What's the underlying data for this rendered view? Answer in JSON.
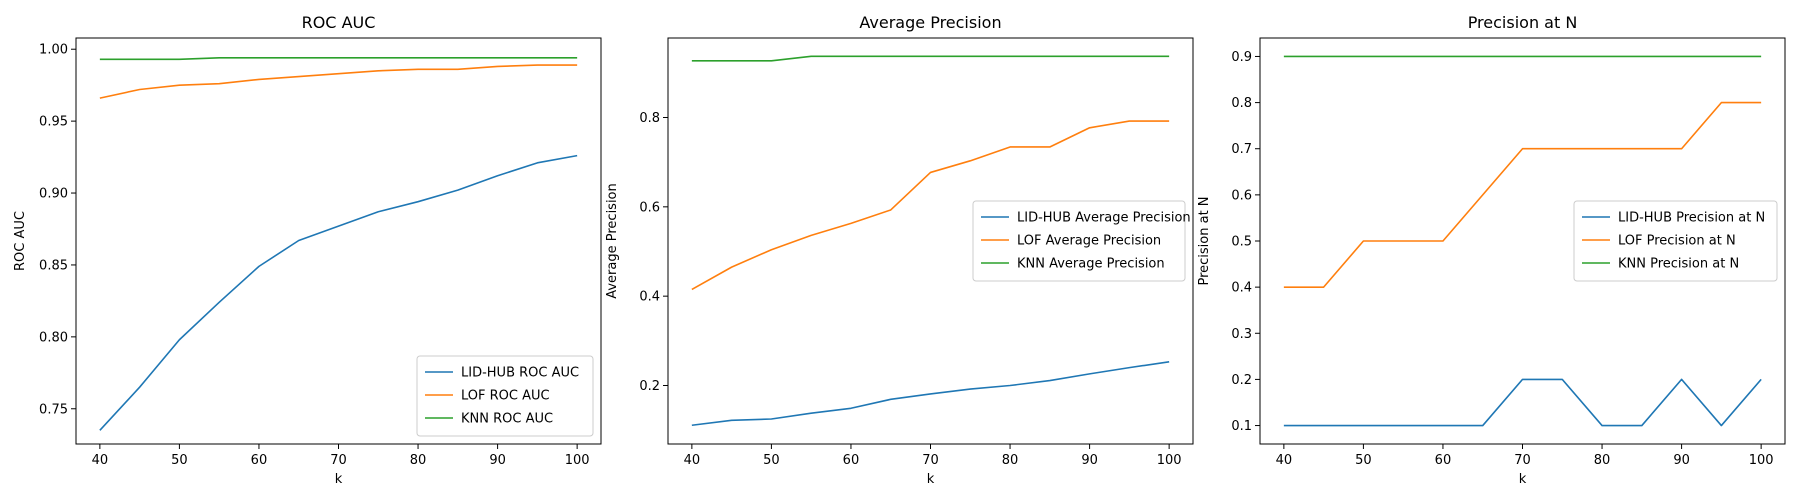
{
  "colors": {
    "blue": "#1f77b4",
    "orange": "#ff7f0e",
    "green": "#2ca02c"
  },
  "chart_data": [
    {
      "type": "line",
      "title": "ROC AUC",
      "xlabel": "k",
      "ylabel": "ROC AUC",
      "x": [
        40,
        45,
        50,
        55,
        60,
        65,
        70,
        75,
        80,
        85,
        90,
        95,
        100
      ],
      "xlim": [
        37,
        103
      ],
      "ylim": [
        0.7255,
        1.0078
      ],
      "xticks": [
        40,
        50,
        60,
        70,
        80,
        90,
        100
      ],
      "yticks": [
        0.75,
        0.8,
        0.85,
        0.9,
        0.95,
        1.0
      ],
      "ytick_labels": [
        "0.75",
        "0.80",
        "0.85",
        "0.90",
        "0.95",
        "1.00"
      ],
      "grid": false,
      "legend": "bottom-right",
      "series": [
        {
          "name": "LID-HUB ROC AUC",
          "color": "#1f77b4",
          "values": [
            0.735,
            0.765,
            0.798,
            0.824,
            0.849,
            0.867,
            0.877,
            0.887,
            0.894,
            0.902,
            0.912,
            0.921,
            0.926
          ]
        },
        {
          "name": "LOF ROC AUC",
          "color": "#ff7f0e",
          "values": [
            0.966,
            0.972,
            0.975,
            0.976,
            0.979,
            0.981,
            0.983,
            0.985,
            0.986,
            0.986,
            0.988,
            0.989,
            0.989
          ]
        },
        {
          "name": "KNN ROC AUC",
          "color": "#2ca02c",
          "values": [
            0.993,
            0.993,
            0.993,
            0.994,
            0.994,
            0.994,
            0.994,
            0.994,
            0.994,
            0.994,
            0.994,
            0.994,
            0.994
          ]
        }
      ]
    },
    {
      "type": "line",
      "title": "Average Precision",
      "xlabel": "k",
      "ylabel": "Average Precision",
      "x": [
        40,
        45,
        50,
        55,
        60,
        65,
        70,
        75,
        80,
        85,
        90,
        95,
        100
      ],
      "xlim": [
        37,
        103
      ],
      "ylim": [
        0.069,
        0.978
      ],
      "xticks": [
        40,
        50,
        60,
        70,
        80,
        90,
        100
      ],
      "yticks": [
        0.2,
        0.4,
        0.6,
        0.8
      ],
      "ytick_labels": [
        "0.2",
        "0.4",
        "0.6",
        "0.8"
      ],
      "grid": false,
      "legend": "center-right",
      "series": [
        {
          "name": "LID-HUB Average Precision",
          "color": "#1f77b4",
          "values": [
            0.111,
            0.122,
            0.125,
            0.138,
            0.149,
            0.169,
            0.181,
            0.192,
            0.2,
            0.211,
            0.226,
            0.24,
            0.253
          ]
        },
        {
          "name": "LOF Average Precision",
          "color": "#ff7f0e",
          "values": [
            0.415,
            0.465,
            0.504,
            0.536,
            0.563,
            0.593,
            0.677,
            0.703,
            0.734,
            0.734,
            0.777,
            0.792,
            0.792
          ]
        },
        {
          "name": "KNN Average Precision",
          "color": "#2ca02c",
          "values": [
            0.927,
            0.927,
            0.927,
            0.937,
            0.937,
            0.937,
            0.937,
            0.937,
            0.937,
            0.937,
            0.937,
            0.937,
            0.937
          ]
        }
      ]
    },
    {
      "type": "line",
      "title": "Precision at N",
      "xlabel": "k",
      "ylabel": "Precision at N",
      "x": [
        40,
        45,
        50,
        55,
        60,
        65,
        70,
        75,
        80,
        85,
        90,
        95,
        100
      ],
      "xlim": [
        37,
        103
      ],
      "ylim": [
        0.06,
        0.94
      ],
      "xticks": [
        40,
        50,
        60,
        70,
        80,
        90,
        100
      ],
      "yticks": [
        0.1,
        0.2,
        0.3,
        0.4,
        0.5,
        0.6,
        0.7,
        0.8,
        0.9
      ],
      "ytick_labels": [
        "0.1",
        "0.2",
        "0.3",
        "0.4",
        "0.5",
        "0.6",
        "0.7",
        "0.8",
        "0.9"
      ],
      "grid": false,
      "legend": "center-right",
      "series": [
        {
          "name": "LID-HUB Precision at N",
          "color": "#1f77b4",
          "values": [
            0.1,
            0.1,
            0.1,
            0.1,
            0.1,
            0.1,
            0.2,
            0.2,
            0.1,
            0.1,
            0.2,
            0.1,
            0.2
          ]
        },
        {
          "name": "LOF Precision at N",
          "color": "#ff7f0e",
          "values": [
            0.4,
            0.4,
            0.5,
            0.5,
            0.5,
            0.6,
            0.7,
            0.7,
            0.7,
            0.7,
            0.7,
            0.8,
            0.8
          ]
        },
        {
          "name": "KNN Precision at N",
          "color": "#2ca02c",
          "values": [
            0.9,
            0.9,
            0.9,
            0.9,
            0.9,
            0.9,
            0.9,
            0.9,
            0.9,
            0.9,
            0.9,
            0.9,
            0.9
          ]
        }
      ]
    }
  ]
}
